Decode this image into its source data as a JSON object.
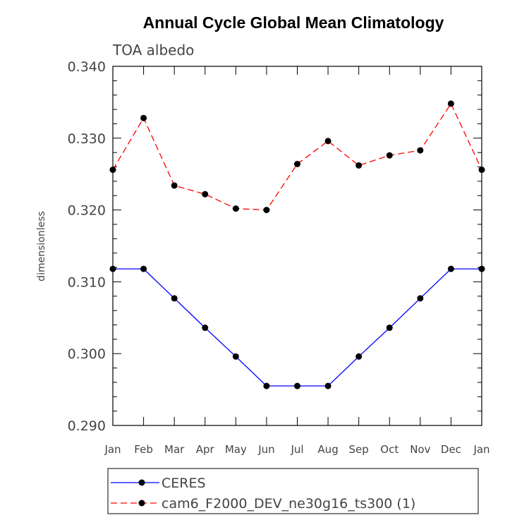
{
  "chart_data": {
    "type": "line",
    "title": "Annual Cycle Global Mean Climatology",
    "subtitle": "TOA albedo",
    "ylabel": "dimensionless",
    "xlabel": "",
    "ylim": [
      0.29,
      0.34
    ],
    "yticks": [
      "0.290",
      "0.300",
      "0.310",
      "0.320",
      "0.330",
      "0.340"
    ],
    "categories": [
      "Jan",
      "Feb",
      "Mar",
      "Apr",
      "May",
      "Jun",
      "Jul",
      "Aug",
      "Sep",
      "Oct",
      "Nov",
      "Dec",
      "Jan"
    ],
    "grid": false,
    "legend_position": "bottom",
    "series": [
      {
        "name": "CERES",
        "color": "#0000ff",
        "dash": "solid",
        "values": [
          0.3118,
          0.3118,
          0.3077,
          0.3036,
          0.2996,
          0.2955,
          0.2955,
          0.2955,
          0.2996,
          0.3036,
          0.3077,
          0.3118,
          0.3118
        ]
      },
      {
        "name": "cam6_F2000_DEV_ne30g16_ts300 (1)",
        "color": "#ff0000",
        "dash": "dashed",
        "values": [
          0.3256,
          0.3328,
          0.3234,
          0.3222,
          0.3202,
          0.32,
          0.3264,
          0.3296,
          0.3262,
          0.3276,
          0.3283,
          0.3348,
          0.3256
        ]
      }
    ]
  }
}
